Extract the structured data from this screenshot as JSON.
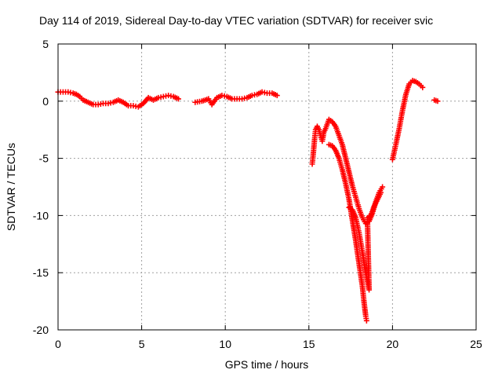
{
  "chart_data": {
    "type": "scatter",
    "title": "Day 114 of 2019, Sidereal Day-to-day VTEC variation (SDTVAR) for receiver svic",
    "xlabel": "GPS time / hours",
    "ylabel": "SDTVAR / TECUs",
    "xlim": [
      0,
      25
    ],
    "ylim": [
      -20,
      5
    ],
    "xticks": [
      0,
      5,
      10,
      15,
      20,
      25
    ],
    "yticks": [
      -20,
      -15,
      -10,
      -5,
      0,
      5
    ],
    "xtick_labels": [
      "0",
      "5",
      "10",
      "15",
      "20",
      "25"
    ],
    "ytick_labels": [
      "-20",
      "-15",
      "-10",
      "-5",
      "0",
      "5"
    ],
    "grid": true,
    "marker": "plus",
    "color": "#ff0000",
    "series": [
      {
        "points": [
          [
            0.0,
            0.8
          ],
          [
            0.3,
            0.8
          ],
          [
            0.6,
            0.8
          ],
          [
            0.9,
            0.7
          ],
          [
            1.1,
            0.6
          ],
          [
            1.3,
            0.4
          ],
          [
            1.5,
            0.1
          ],
          [
            1.8,
            -0.1
          ],
          [
            2.1,
            -0.3
          ],
          [
            2.4,
            -0.3
          ],
          [
            2.7,
            -0.2
          ],
          [
            3.0,
            -0.2
          ],
          [
            3.3,
            -0.1
          ],
          [
            3.6,
            0.1
          ],
          [
            3.9,
            -0.1
          ],
          [
            4.2,
            -0.4
          ],
          [
            4.5,
            -0.4
          ],
          [
            4.8,
            -0.5
          ],
          [
            5.1,
            -0.2
          ],
          [
            5.4,
            0.3
          ],
          [
            5.7,
            0.1
          ],
          [
            6.0,
            0.3
          ],
          [
            6.3,
            0.4
          ],
          [
            6.6,
            0.5
          ],
          [
            6.9,
            0.4
          ],
          [
            7.2,
            0.2
          ],
          [
            8.2,
            -0.1
          ],
          [
            8.6,
            0.0
          ],
          [
            9.0,
            0.2
          ],
          [
            9.2,
            -0.3
          ],
          [
            9.5,
            0.3
          ],
          [
            9.8,
            0.5
          ],
          [
            10.1,
            0.4
          ],
          [
            10.4,
            0.2
          ],
          [
            10.7,
            0.2
          ],
          [
            11.0,
            0.2
          ],
          [
            11.3,
            0.3
          ],
          [
            11.6,
            0.5
          ],
          [
            11.9,
            0.6
          ],
          [
            12.2,
            0.8
          ],
          [
            12.5,
            0.7
          ],
          [
            12.8,
            0.7
          ],
          [
            13.1,
            0.5
          ],
          [
            15.2,
            -5.5
          ],
          [
            15.25,
            -4.8
          ],
          [
            15.3,
            -4.0
          ],
          [
            15.35,
            -3.2
          ],
          [
            15.4,
            -2.5
          ],
          [
            15.5,
            -2.2
          ],
          [
            15.6,
            -2.5
          ],
          [
            15.7,
            -3.0
          ],
          [
            15.8,
            -3.5
          ],
          [
            15.9,
            -2.7
          ],
          [
            16.0,
            -2.4
          ],
          [
            16.2,
            -1.6
          ],
          [
            16.4,
            -1.8
          ],
          [
            16.6,
            -2.2
          ],
          [
            16.8,
            -3.0
          ],
          [
            17.0,
            -3.8
          ],
          [
            17.2,
            -5.0
          ],
          [
            17.4,
            -6.2
          ],
          [
            17.6,
            -7.4
          ],
          [
            17.8,
            -8.4
          ],
          [
            18.0,
            -9.4
          ],
          [
            18.2,
            -10.2
          ],
          [
            18.4,
            -10.7
          ],
          [
            18.6,
            -10.5
          ],
          [
            18.8,
            -9.8
          ],
          [
            19.0,
            -8.8
          ],
          [
            19.2,
            -8.0
          ],
          [
            19.4,
            -7.5
          ],
          [
            16.2,
            -3.8
          ],
          [
            16.4,
            -3.9
          ],
          [
            16.6,
            -4.3
          ],
          [
            16.8,
            -5.0
          ],
          [
            17.0,
            -6.0
          ],
          [
            17.2,
            -7.2
          ],
          [
            17.4,
            -8.6
          ],
          [
            17.6,
            -10.4
          ],
          [
            17.8,
            -12.2
          ],
          [
            18.0,
            -14.2
          ],
          [
            18.2,
            -16.2
          ],
          [
            18.3,
            -17.6
          ],
          [
            18.4,
            -18.8
          ],
          [
            18.45,
            -19.2
          ],
          [
            17.4,
            -9.3
          ],
          [
            17.6,
            -9.5
          ],
          [
            17.8,
            -10.2
          ],
          [
            18.0,
            -11.5
          ],
          [
            18.2,
            -13.2
          ],
          [
            18.4,
            -15.0
          ],
          [
            18.6,
            -16.5
          ],
          [
            18.5,
            -10.2
          ],
          [
            18.7,
            -10.0
          ],
          [
            18.9,
            -9.2
          ],
          [
            19.1,
            -8.6
          ],
          [
            19.3,
            -8.0
          ],
          [
            20.0,
            -5.1
          ],
          [
            20.2,
            -3.8
          ],
          [
            20.4,
            -2.4
          ],
          [
            20.6,
            -0.8
          ],
          [
            20.8,
            0.6
          ],
          [
            21.0,
            1.5
          ],
          [
            21.2,
            1.8
          ],
          [
            21.4,
            1.7
          ],
          [
            21.6,
            1.5
          ],
          [
            21.8,
            1.2
          ],
          [
            22.5,
            0.1
          ],
          [
            22.7,
            0.0
          ]
        ]
      }
    ]
  }
}
